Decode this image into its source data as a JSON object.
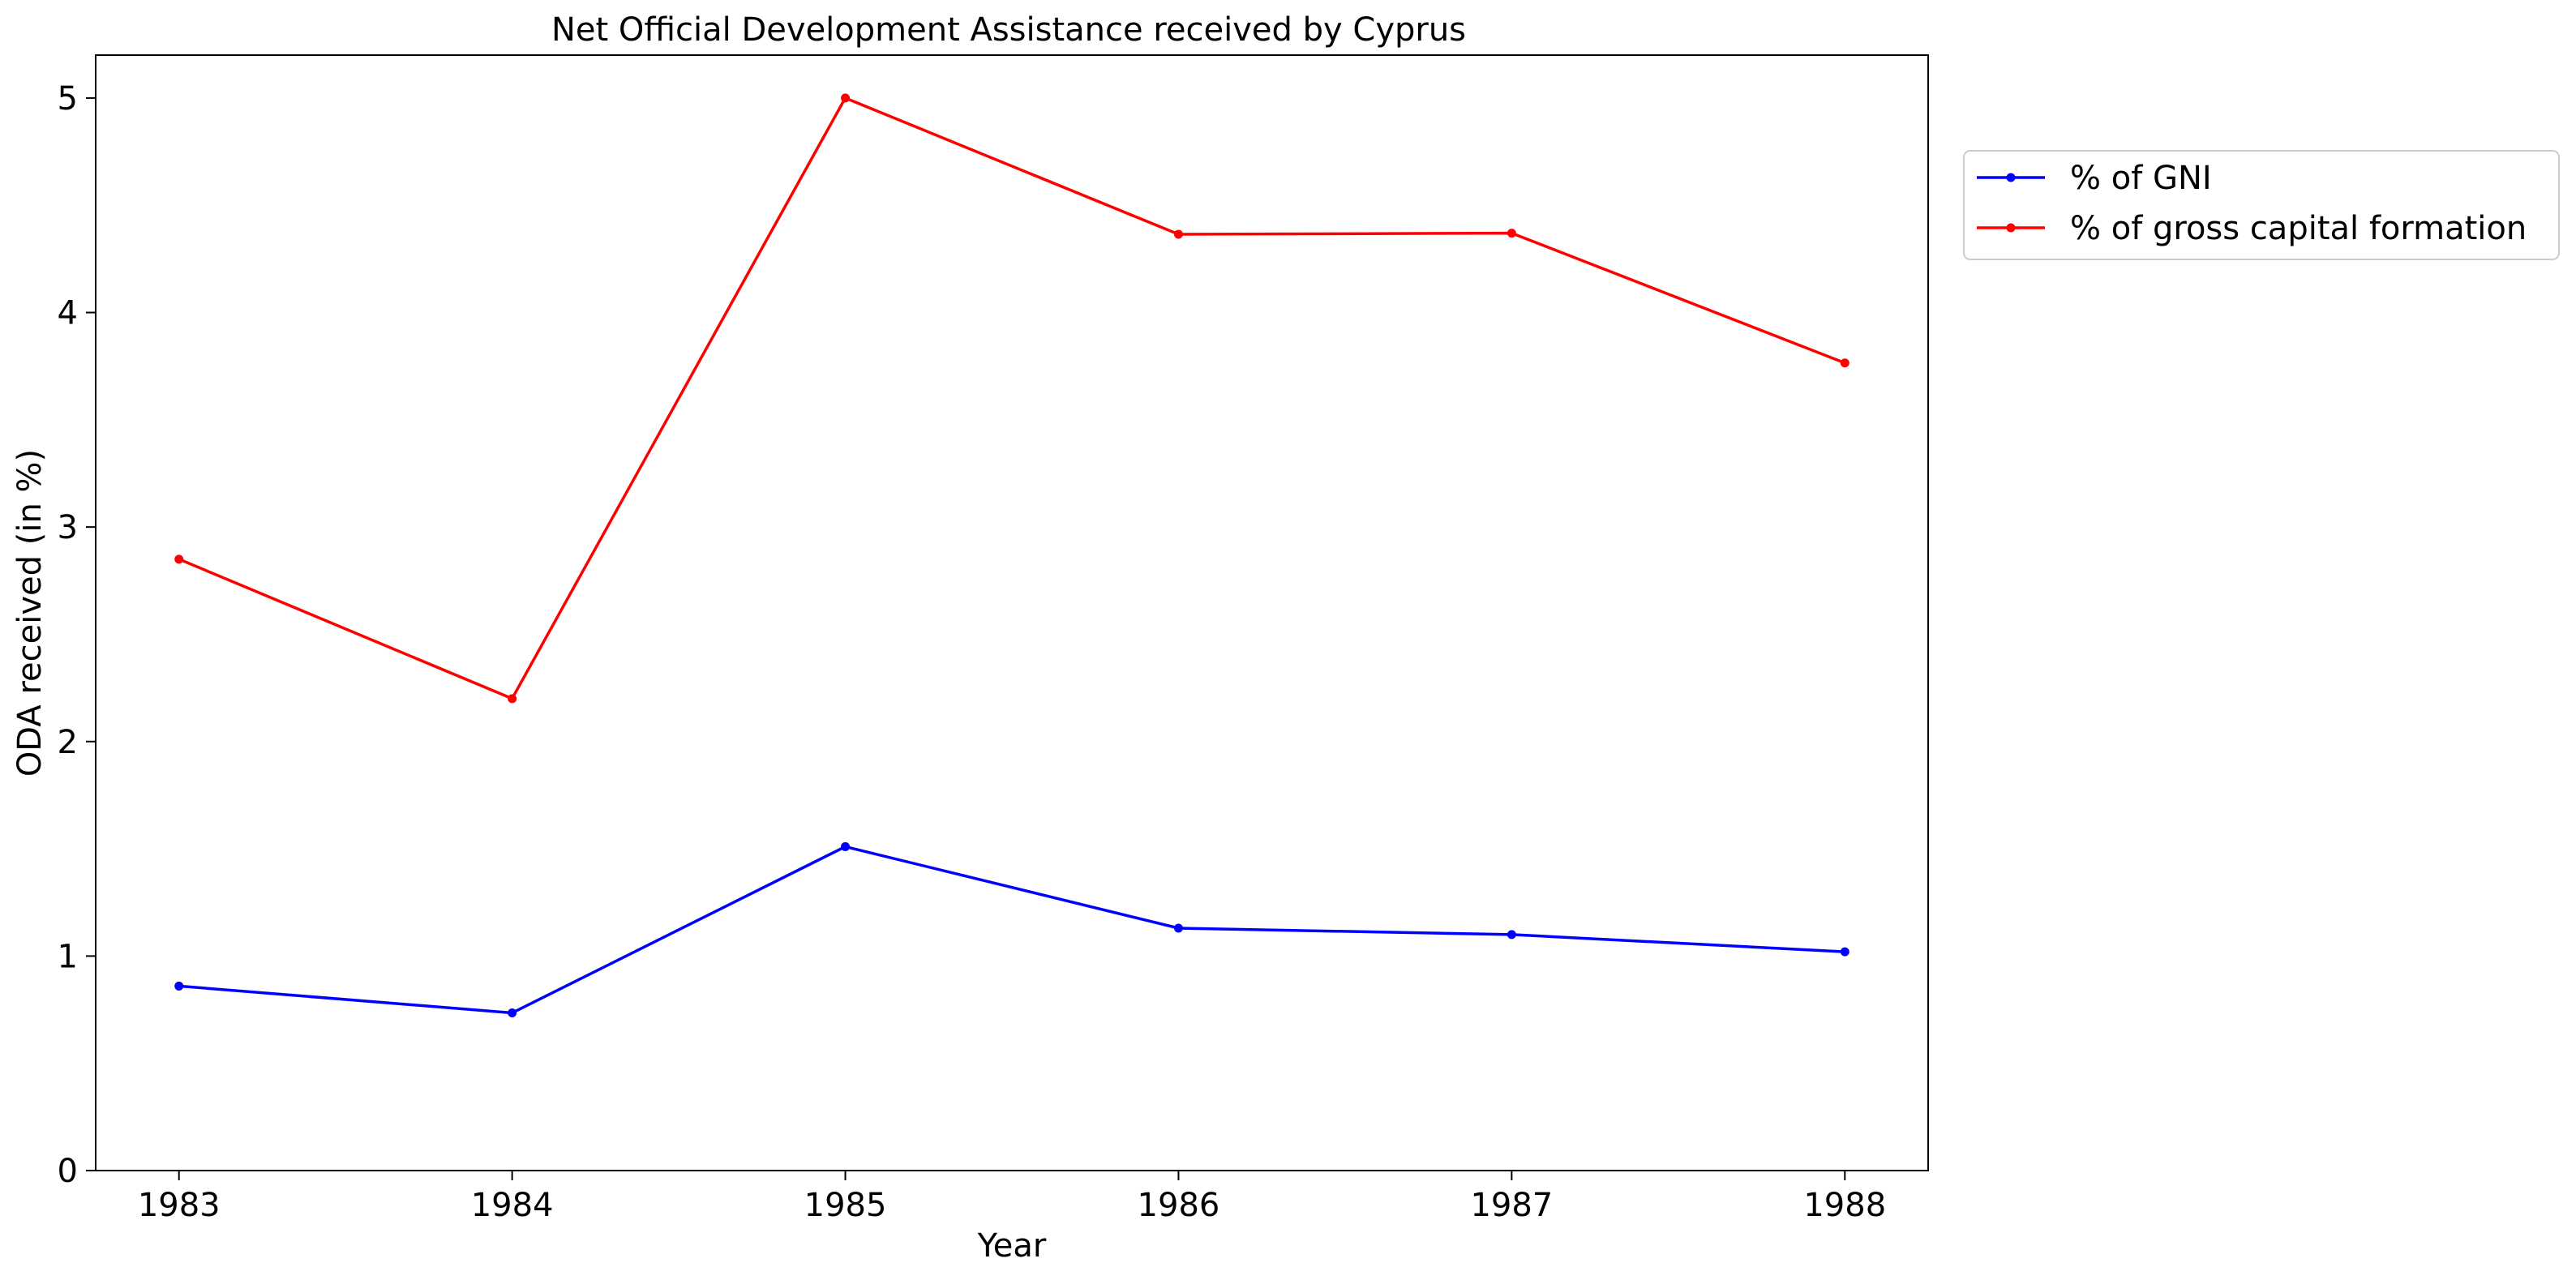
{
  "chart_data": {
    "type": "line",
    "title": "Net Official Development Assistance received by Cyprus",
    "xlabel": "Year",
    "ylabel": "ODA received (in %)",
    "x": [
      1983,
      1984,
      1985,
      1986,
      1987,
      1988
    ],
    "x_ticks": [
      "1983",
      "1984",
      "1985",
      "1986",
      "1987",
      "1988"
    ],
    "y_ticks": [
      "0",
      "1",
      "2",
      "3",
      "4",
      "5"
    ],
    "ylim": [
      0,
      5.2
    ],
    "xlim": [
      1982.75,
      1988.25
    ],
    "grid": false,
    "legend_position": "top-right-outside",
    "series": [
      {
        "name": "% of GNI",
        "color": "#0000ff",
        "values": [
          0.86,
          0.735,
          1.51,
          1.13,
          1.1,
          1.02
        ]
      },
      {
        "name": "% of gross capital formation",
        "color": "#ff0000",
        "values": [
          2.85,
          2.2,
          5.0,
          4.365,
          4.37,
          3.765
        ]
      }
    ]
  }
}
